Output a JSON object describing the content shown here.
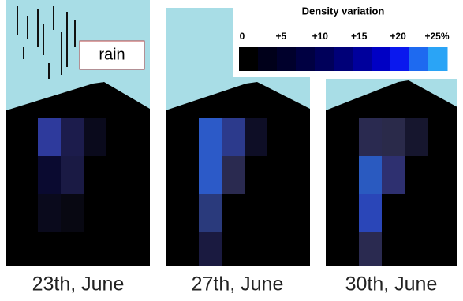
{
  "colorbar": {
    "title": "Density variation",
    "ticks": [
      "0",
      "+5",
      "+10",
      "+15",
      "+20",
      "+25%"
    ]
  },
  "annotation": "rain",
  "panels": [
    {
      "label": "23th, June"
    },
    {
      "label": "27th, June"
    },
    {
      "label": "30th, June"
    }
  ]
}
